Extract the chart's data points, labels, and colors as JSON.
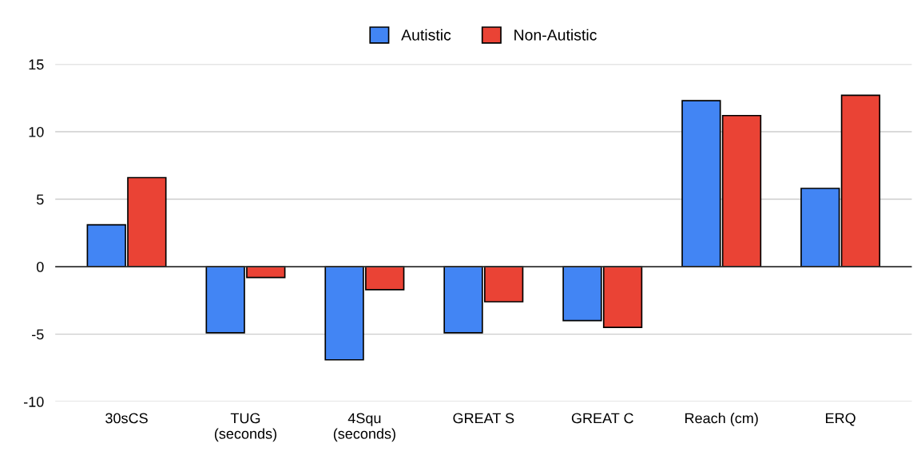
{
  "chart_data": {
    "type": "bar",
    "categories": [
      "30sCS",
      "TUG\n(seconds)",
      "4Squ\n(seconds)",
      "GREAT S",
      "GREAT C",
      "Reach (cm)",
      "ERQ"
    ],
    "series": [
      {
        "name": "Autistic",
        "color": "#4285f4",
        "values": [
          3.1,
          -4.9,
          -6.9,
          -4.9,
          -4.0,
          12.3,
          5.8
        ]
      },
      {
        "name": "Non-Autistic",
        "color": "#ea4335",
        "values": [
          6.6,
          -0.8,
          -1.7,
          -2.6,
          -4.5,
          11.2,
          12.7
        ]
      }
    ],
    "ylim": [
      -10,
      15
    ],
    "yticks": [
      -10,
      -5,
      0,
      5,
      10,
      15
    ],
    "grid": "y",
    "legend": "top"
  }
}
